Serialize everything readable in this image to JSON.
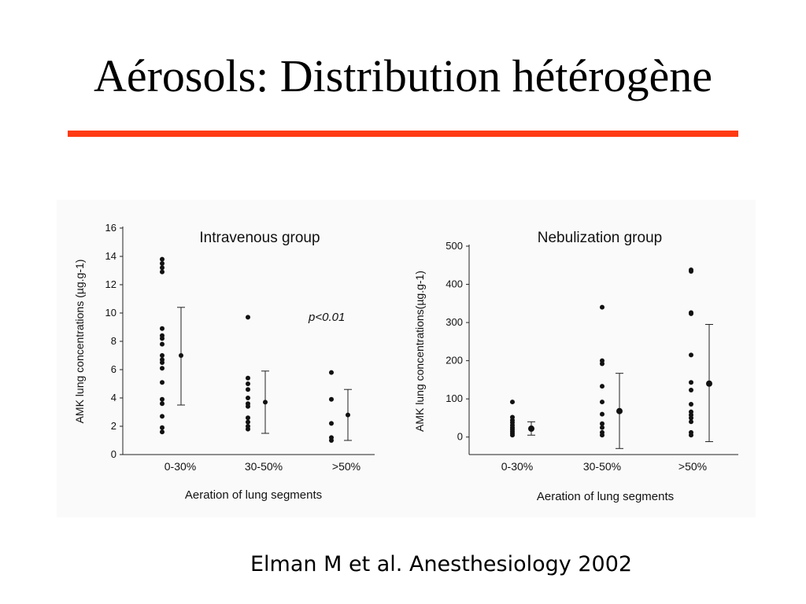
{
  "slide": {
    "title": "Aérosols: Distribution hétérogène",
    "rule_color": "#ff3b14",
    "citation": "Elman M et al. Anesthesiology 2002"
  },
  "chart_data": [
    {
      "type": "scatter",
      "title": "Intravenous group",
      "xlabel": "Aeration of lung segments",
      "ylabel": "AMK lung concentrations (µg.g-1)",
      "ylim": [
        0,
        16
      ],
      "yticks": [
        0,
        2,
        4,
        6,
        8,
        10,
        12,
        14,
        16
      ],
      "categories": [
        "0-30%",
        "30-50%",
        ">50%"
      ],
      "annotation": "p<0.01",
      "grid": false,
      "points": [
        [
          13.8,
          13.5,
          13.2,
          12.9,
          8.9,
          8.4,
          8.2,
          7.8,
          7.0,
          6.7,
          6.5,
          6.1,
          5.1,
          3.9,
          3.6,
          2.7,
          1.9,
          1.6
        ],
        [
          9.7,
          5.4,
          5.0,
          4.6,
          4.0,
          3.6,
          3.4,
          2.6,
          2.3,
          2.0,
          1.8
        ],
        [
          5.8,
          3.9,
          2.2,
          1.2,
          1.0
        ]
      ],
      "summary": [
        {
          "mean": 7.0,
          "low": 3.5,
          "high": 10.4
        },
        {
          "mean": 3.7,
          "low": 1.5,
          "high": 5.9
        },
        {
          "mean": 2.8,
          "low": 1.0,
          "high": 4.6
        }
      ]
    },
    {
      "type": "scatter",
      "title": "Nebulization group",
      "xlabel": "Aeration of lung segments",
      "ylabel": "AMK lung concentrations(µg.g-1)",
      "ylim": [
        -50,
        500
      ],
      "yticks": [
        0,
        100,
        200,
        300,
        400,
        500
      ],
      "categories": [
        "0-30%",
        "30-50%",
        ">50%"
      ],
      "grid": false,
      "points": [
        [
          92,
          52,
          44,
          38,
          31,
          25,
          20,
          15,
          10,
          5
        ],
        [
          340,
          200,
          192,
          133,
          92,
          60,
          35,
          25,
          12,
          5
        ],
        [
          438,
          434,
          326,
          323,
          215,
          143,
          123,
          86,
          66,
          58,
          50,
          40,
          12,
          5
        ]
      ],
      "summary": [
        {
          "mean": 22,
          "low": 5,
          "high": 40
        },
        {
          "mean": 68,
          "low": -30,
          "high": 167
        },
        {
          "mean": 140,
          "low": -12,
          "high": 295
        }
      ]
    }
  ]
}
